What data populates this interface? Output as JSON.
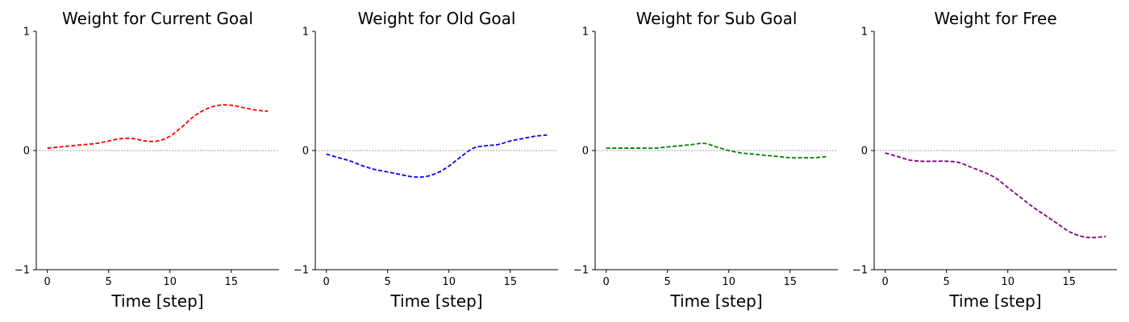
{
  "chart_data": [
    {
      "type": "line",
      "title": "Weight for Current Goal",
      "xlabel": "Time [step]",
      "ylabel": "",
      "xlim": [
        -0.9,
        18.9
      ],
      "ylim": [
        -1,
        1
      ],
      "xticks": [
        0,
        5,
        10,
        15
      ],
      "yticks": [
        -1,
        0,
        1
      ],
      "grid": false,
      "series": [
        {
          "color": "#ff0000",
          "x": [
            0,
            1,
            2,
            3,
            4,
            5,
            6,
            7,
            8,
            9,
            10,
            11,
            12,
            13,
            14,
            15,
            16,
            17,
            18
          ],
          "y": [
            0.02,
            0.03,
            0.04,
            0.05,
            0.06,
            0.08,
            0.1,
            0.1,
            0.08,
            0.08,
            0.12,
            0.2,
            0.29,
            0.35,
            0.38,
            0.38,
            0.36,
            0.34,
            0.33
          ]
        }
      ]
    },
    {
      "type": "line",
      "title": "Weight for Old Goal",
      "xlabel": "Time [step]",
      "ylabel": "",
      "xlim": [
        -0.9,
        18.9
      ],
      "ylim": [
        -1,
        1
      ],
      "xticks": [
        0,
        5,
        10,
        15
      ],
      "yticks": [
        -1,
        0,
        1
      ],
      "grid": false,
      "series": [
        {
          "color": "#0000ff",
          "x": [
            0,
            1,
            2,
            3,
            4,
            5,
            6,
            7,
            8,
            9,
            10,
            11,
            12,
            13,
            14,
            15,
            16,
            17,
            18
          ],
          "y": [
            -0.03,
            -0.06,
            -0.09,
            -0.13,
            -0.16,
            -0.18,
            -0.2,
            -0.22,
            -0.22,
            -0.19,
            -0.13,
            -0.05,
            0.02,
            0.04,
            0.05,
            0.08,
            0.1,
            0.12,
            0.13
          ]
        }
      ]
    },
    {
      "type": "line",
      "title": "Weight for Sub Goal",
      "xlabel": "Time [step]",
      "ylabel": "",
      "xlim": [
        -0.9,
        18.9
      ],
      "ylim": [
        -1,
        1
      ],
      "xticks": [
        0,
        5,
        10,
        15
      ],
      "yticks": [
        -1,
        0,
        1
      ],
      "grid": false,
      "series": [
        {
          "color": "#008000",
          "x": [
            0,
            1,
            2,
            3,
            4,
            5,
            6,
            7,
            8,
            9,
            10,
            11,
            12,
            13,
            14,
            15,
            16,
            17,
            18
          ],
          "y": [
            0.02,
            0.02,
            0.02,
            0.02,
            0.02,
            0.03,
            0.04,
            0.05,
            0.06,
            0.03,
            0.0,
            -0.02,
            -0.03,
            -0.04,
            -0.05,
            -0.06,
            -0.06,
            -0.06,
            -0.05
          ]
        }
      ]
    },
    {
      "type": "line",
      "title": "Weight for Free",
      "xlabel": "Time [step]",
      "ylabel": "",
      "xlim": [
        -0.9,
        18.9
      ],
      "ylim": [
        -1,
        1
      ],
      "xticks": [
        0,
        5,
        10,
        15
      ],
      "yticks": [
        -1,
        0,
        1
      ],
      "grid": false,
      "series": [
        {
          "color": "#800080",
          "x": [
            0,
            1,
            2,
            3,
            4,
            5,
            6,
            7,
            8,
            9,
            10,
            11,
            12,
            13,
            14,
            15,
            16,
            17,
            18
          ],
          "y": [
            -0.02,
            -0.05,
            -0.08,
            -0.09,
            -0.09,
            -0.09,
            -0.1,
            -0.14,
            -0.18,
            -0.23,
            -0.31,
            -0.39,
            -0.47,
            -0.54,
            -0.61,
            -0.68,
            -0.72,
            -0.73,
            -0.72
          ]
        }
      ]
    }
  ]
}
